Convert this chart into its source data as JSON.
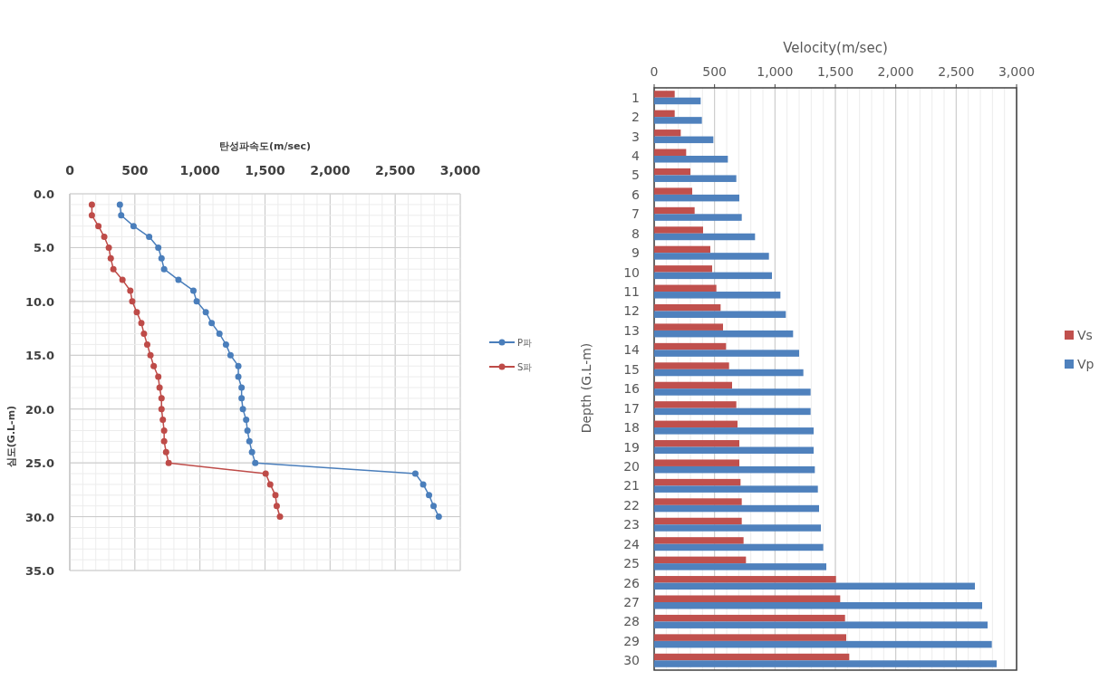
{
  "chart_data": [
    {
      "type": "line",
      "xlabel": "탄성파속도(m/sec)",
      "ylabel": "심도(G.L-m)",
      "xlim": [
        0,
        3000
      ],
      "xticks": [
        {
          "value": 0,
          "label": "0"
        },
        {
          "value": 500,
          "label": "500"
        },
        {
          "value": 1000,
          "label": "1,000"
        },
        {
          "value": 1500,
          "label": "1,500"
        },
        {
          "value": 2000,
          "label": "2,000"
        },
        {
          "value": 2500,
          "label": "2,500"
        },
        {
          "value": 3000,
          "label": "3,000"
        }
      ],
      "ylim": [
        35,
        0
      ],
      "yticks": [
        {
          "value": 0,
          "label": "0.0"
        },
        {
          "value": 5,
          "label": "5.0"
        },
        {
          "value": 10,
          "label": "10.0"
        },
        {
          "value": 15,
          "label": "15.0"
        },
        {
          "value": 20,
          "label": "20.0"
        },
        {
          "value": 25,
          "label": "25.0"
        },
        {
          "value": 30,
          "label": "30.0"
        },
        {
          "value": 35,
          "label": "35.0"
        }
      ],
      "grid": true,
      "legend": "right",
      "marker": "circle",
      "series": [
        {
          "name": "P파",
          "color": "#4a7ebb",
          "x": [
            385,
            395,
            490,
            610,
            680,
            705,
            725,
            835,
            950,
            975,
            1045,
            1090,
            1150,
            1200,
            1235,
            1295,
            1295,
            1320,
            1320,
            1330,
            1355,
            1365,
            1380,
            1400,
            1425,
            2655,
            2715,
            2760,
            2795,
            2835
          ],
          "values": [
            1,
            2,
            3,
            4,
            5,
            6,
            7,
            8,
            9,
            10,
            11,
            12,
            13,
            14,
            15,
            16,
            17,
            18,
            19,
            20,
            21,
            22,
            23,
            24,
            25,
            26,
            27,
            28,
            29,
            30
          ]
        },
        {
          "name": "S파",
          "color": "#be4b48",
          "x": [
            170,
            170,
            220,
            265,
            300,
            315,
            335,
            405,
            465,
            480,
            515,
            550,
            570,
            595,
            620,
            645,
            680,
            690,
            705,
            705,
            715,
            725,
            725,
            740,
            760,
            1505,
            1540,
            1580,
            1590,
            1615
          ],
          "values": [
            1,
            2,
            3,
            4,
            5,
            6,
            7,
            8,
            9,
            10,
            11,
            12,
            13,
            14,
            15,
            16,
            17,
            18,
            19,
            20,
            21,
            22,
            23,
            24,
            25,
            26,
            27,
            28,
            29,
            30
          ]
        }
      ]
    },
    {
      "type": "bar",
      "orientation": "horizontal",
      "xlabel": "Velocity(m/sec)",
      "ylabel": "Depth (G.L-m)",
      "categories": [
        "1",
        "2",
        "3",
        "4",
        "5",
        "6",
        "7",
        "8",
        "9",
        "10",
        "11",
        "12",
        "13",
        "14",
        "15",
        "16",
        "17",
        "18",
        "19",
        "20",
        "21",
        "22",
        "23",
        "24",
        "25",
        "26",
        "27",
        "28",
        "29",
        "30"
      ],
      "xlim": [
        0,
        3000
      ],
      "xticks": [
        {
          "value": 0,
          "label": "0"
        },
        {
          "value": 500,
          "label": "500"
        },
        {
          "value": 1000,
          "label": "1,000"
        },
        {
          "value": 1500,
          "label": "1,500"
        },
        {
          "value": 2000,
          "label": "2,000"
        },
        {
          "value": 2500,
          "label": "2,500"
        },
        {
          "value": 3000,
          "label": "3,000"
        }
      ],
      "grid": "x",
      "legend": "right",
      "series": [
        {
          "name": "Vs",
          "color": "#c0504d",
          "values": [
            170,
            170,
            220,
            265,
            300,
            315,
            335,
            405,
            465,
            480,
            515,
            550,
            570,
            595,
            620,
            645,
            680,
            690,
            705,
            705,
            715,
            725,
            725,
            740,
            760,
            1505,
            1540,
            1580,
            1590,
            1615
          ]
        },
        {
          "name": "Vp",
          "color": "#4f81bd",
          "values": [
            385,
            395,
            490,
            610,
            680,
            705,
            725,
            835,
            950,
            975,
            1045,
            1090,
            1150,
            1200,
            1235,
            1295,
            1295,
            1320,
            1320,
            1330,
            1355,
            1365,
            1380,
            1400,
            1425,
            2655,
            2715,
            2760,
            2795,
            2835
          ]
        }
      ]
    }
  ]
}
